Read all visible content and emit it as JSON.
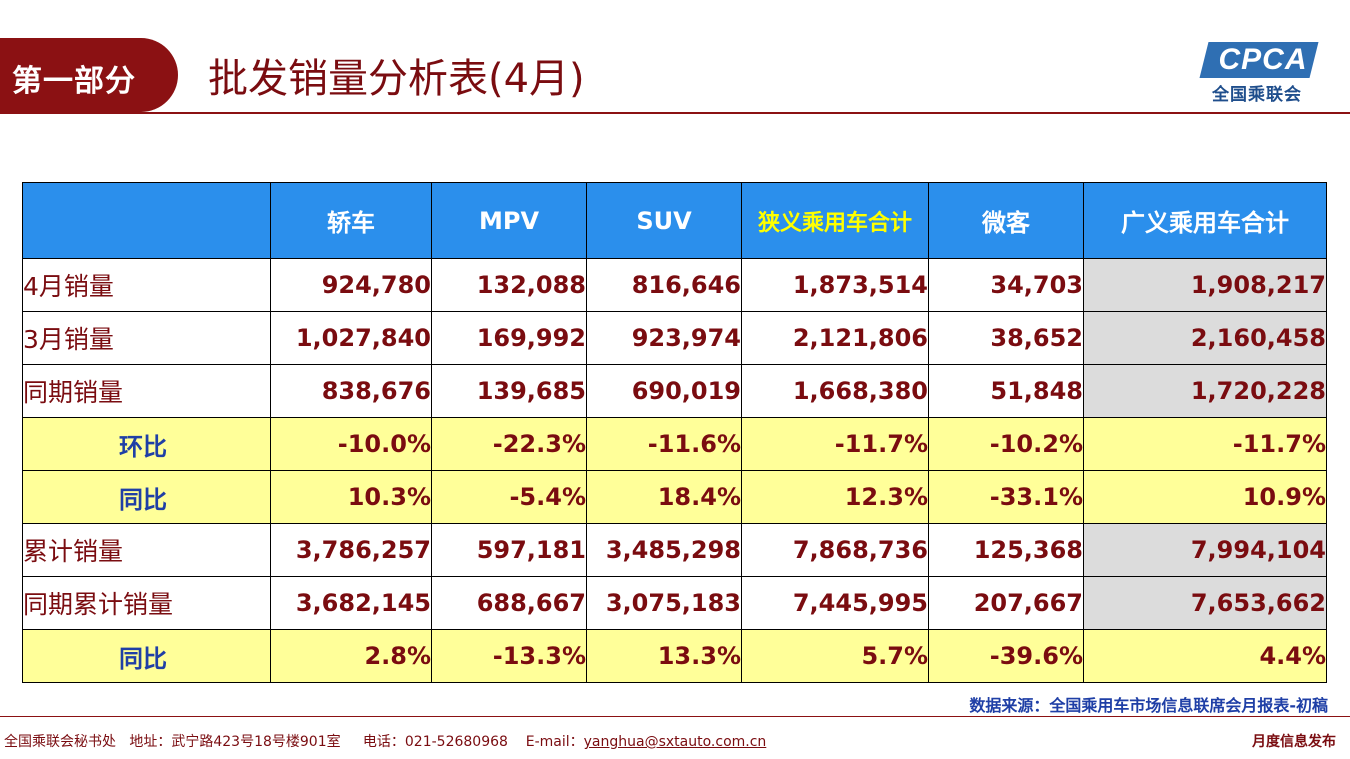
{
  "header": {
    "section_label": "第一部分",
    "title": "批发销量分析表(4月)",
    "logo_text": "CPCA",
    "logo_sub": "全国乘联会"
  },
  "table": {
    "columns": [
      "",
      "轿车",
      "MPV",
      "SUV",
      "狭义乘用车合计",
      "微客",
      "广义乘用车合计"
    ],
    "rows": [
      {
        "label": "4月销量",
        "values": [
          "924,780",
          "132,088",
          "816,646",
          "1,873,514",
          "34,703",
          "1,908,217"
        ]
      },
      {
        "label": "3月销量",
        "values": [
          "1,027,840",
          "169,992",
          "923,974",
          "2,121,806",
          "38,652",
          "2,160,458"
        ]
      },
      {
        "label": "同期销量",
        "values": [
          "838,676",
          "139,685",
          "690,019",
          "1,668,380",
          "51,848",
          "1,720,228"
        ]
      },
      {
        "label": "环比",
        "values": [
          "-10.0%",
          "-22.3%",
          "-11.6%",
          "-11.7%",
          "-10.2%",
          "-11.7%"
        ]
      },
      {
        "label": "同比",
        "values": [
          "10.3%",
          "-5.4%",
          "18.4%",
          "12.3%",
          "-33.1%",
          "10.9%"
        ]
      },
      {
        "label": "累计销量",
        "values": [
          "3,786,257",
          "597,181",
          "3,485,298",
          "7,868,736",
          "125,368",
          "7,994,104"
        ]
      },
      {
        "label": "同期累计销量",
        "values": [
          "3,682,145",
          "688,667",
          "3,075,183",
          "7,445,995",
          "207,667",
          "7,653,662"
        ]
      },
      {
        "label": "同比",
        "values": [
          "2.8%",
          "-13.3%",
          "13.3%",
          "5.7%",
          "-39.6%",
          "4.4%"
        ]
      }
    ]
  },
  "source_note": "数据来源：全国乘用车市场信息联席会月报表-初稿",
  "footer": {
    "org": "全国乘联会秘书处",
    "address": "地址：武宁路423号18号楼901室",
    "phone": "电话：021-52680968",
    "email_label": "E-mail：",
    "email": "yanghua@sxtauto.com.cn",
    "right": "月度信息发布"
  }
}
